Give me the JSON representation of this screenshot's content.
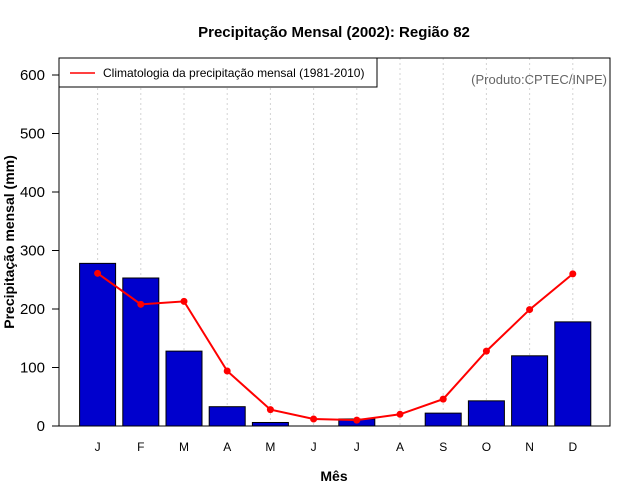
{
  "chart_data": {
    "type": "bar",
    "title": "Precipitação Mensal (2002): Região 82",
    "xlabel": "Mês",
    "ylabel": "Precipitação mensal (mm)",
    "ylim": [
      0,
      600
    ],
    "yticks": [
      0,
      100,
      200,
      300,
      400,
      500,
      600
    ],
    "categories": [
      "J",
      "F",
      "M",
      "A",
      "M",
      "J",
      "J",
      "A",
      "S",
      "O",
      "N",
      "D"
    ],
    "series": [
      {
        "name": "Precipitação mensal 2002",
        "kind": "bar",
        "color": "#0000CD",
        "values": [
          278,
          253,
          128,
          33,
          6,
          0,
          12,
          0,
          22,
          43,
          120,
          178
        ]
      },
      {
        "name": "Climatologia da precipitação mensal (1981-2010)",
        "kind": "line",
        "color": "#FF0000",
        "values": [
          261,
          208,
          213,
          94,
          28,
          12,
          10,
          20,
          46,
          128,
          199,
          260
        ]
      }
    ],
    "legend": {
      "position": "top-left",
      "label": "Climatologia da precipitação mensal (1981-2010)"
    },
    "grid": "vertical dotted",
    "credit": "(Produto:CPTEC/INPE)"
  }
}
